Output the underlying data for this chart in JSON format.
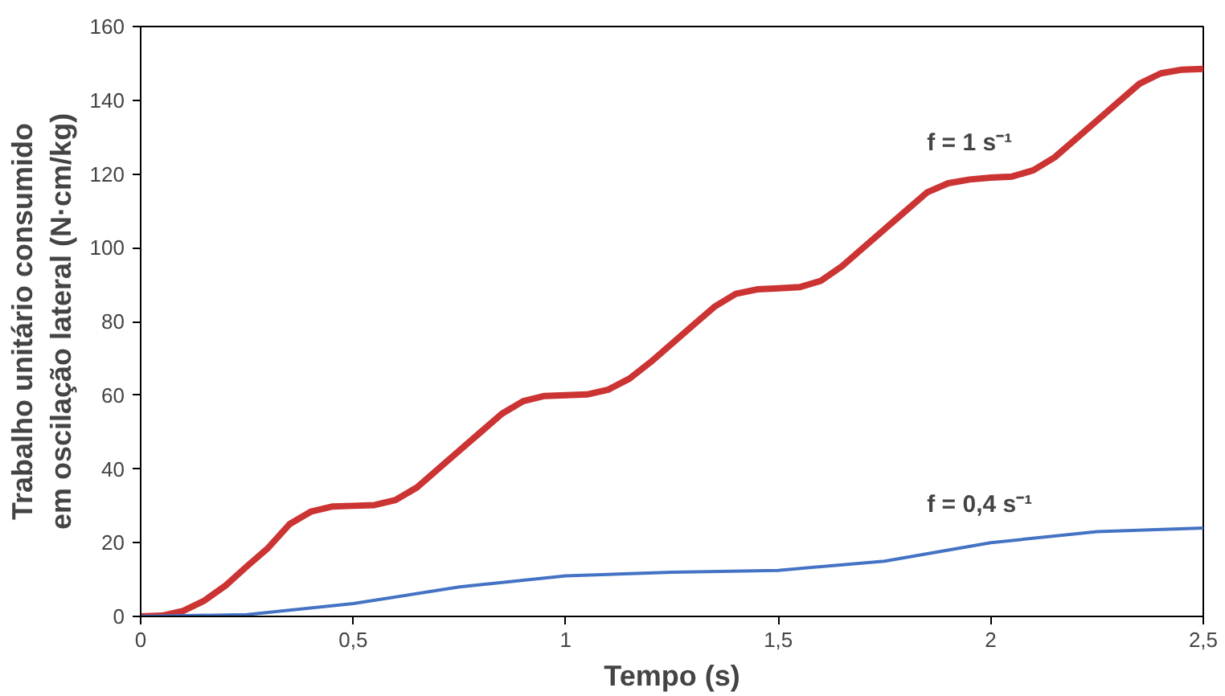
{
  "chart_data": {
    "type": "line",
    "xlabel": "Tempo (s)",
    "ylabel": "Trabalho unitário consumido\nem oscilação lateral (N·cm/kg)",
    "series": [
      {
        "color": "#cc3333",
        "x": [
          0,
          0.05,
          0.1,
          0.15,
          0.2,
          0.25,
          0.3,
          0.35,
          0.4,
          0.45,
          0.5,
          0.55,
          0.6,
          0.65,
          0.7,
          0.75,
          0.8,
          0.85,
          0.9,
          0.95,
          1.0,
          1.05,
          1.1,
          1.15,
          1.2,
          1.25,
          1.3,
          1.35,
          1.4,
          1.45,
          1.5,
          1.55,
          1.6,
          1.65,
          1.7,
          1.75,
          1.8,
          1.85,
          1.9,
          1.95,
          2.0,
          2.05,
          2.1,
          2.15,
          2.2,
          2.25,
          2.3,
          2.35,
          2.4,
          2.45,
          2.5
        ],
        "values": [
          0,
          0.2,
          1.5,
          4.3,
          8.4,
          13.6,
          18.6,
          25,
          28.4,
          29.8,
          30,
          30.2,
          31.6,
          35,
          40,
          45,
          50,
          55,
          58.4,
          59.8,
          60,
          60.2,
          61.5,
          64.5,
          69,
          74,
          79,
          84,
          87.5,
          88.7,
          89,
          89.3,
          91,
          95,
          100,
          105,
          110,
          115,
          117.5,
          118.5,
          119,
          119.3,
          121,
          124.5,
          129.5,
          134.5,
          139.5,
          144.5,
          147.3,
          148.3,
          148.5
        ]
      },
      {
        "color": "#4472c4",
        "x": [
          0,
          0.25,
          0.5,
          0.75,
          1.0,
          1.25,
          1.5,
          1.75,
          2.0,
          2.25,
          2.5
        ],
        "values": [
          0,
          0.5,
          3.5,
          8,
          11,
          12,
          12.5,
          15,
          20,
          23,
          24
        ]
      }
    ],
    "annotations": [
      {
        "text": "f = 1 s⁻¹",
        "x": 1.85,
        "y": 115
      },
      {
        "text": "f = 0,4 s⁻¹",
        "x": 1.85,
        "y": 17
      }
    ],
    "xlim": [
      0,
      2.5
    ],
    "ylim": [
      0,
      160
    ],
    "xticks": [
      0,
      {
        "value": 0.5,
        "label": "0,5"
      },
      1,
      {
        "value": 1.5,
        "label": "1,5"
      },
      2,
      {
        "value": 2.5,
        "label": "2,5"
      }
    ],
    "yticks": [
      0,
      20,
      40,
      60,
      80,
      100,
      120,
      140,
      160
    ],
    "grid": false,
    "marker": "none",
    "line_style": "solid"
  }
}
